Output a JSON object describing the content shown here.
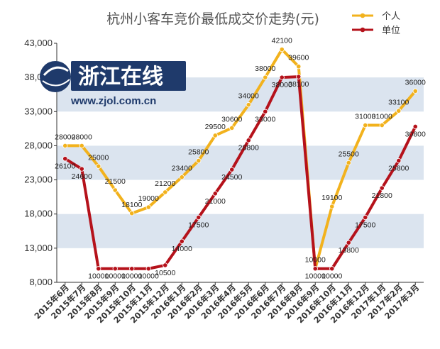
{
  "chart_data": {
    "type": "line",
    "title": "杭州小客车竞价最低成交价走势(元)",
    "categories": [
      "2015年6月",
      "2015年7月",
      "2015年8月",
      "2015年9月",
      "2015年10月",
      "2015年11月",
      "2015年12月",
      "2016年1月",
      "2016年2月",
      "2016年3月",
      "2016年4月",
      "2016年5月",
      "2016年6月",
      "2016年7月",
      "2016年8月",
      "2016年9月",
      "2016年10月",
      "2016年11月",
      "2016年12月",
      "2017年1月",
      "2017年2月",
      "2017年3月"
    ],
    "series": [
      {
        "name": "个人",
        "color": "#f2b21d",
        "values": [
          28000,
          28000,
          25000,
          21500,
          18100,
          19000,
          21200,
          23400,
          25800,
          29500,
          30600,
          34000,
          38000,
          42100,
          39600,
          10000,
          19100,
          25500,
          31000,
          31000,
          33100,
          36000
        ]
      },
      {
        "name": "单位",
        "color": "#b5121b",
        "values": [
          26100,
          24600,
          10000,
          10000,
          10000,
          10000,
          10500,
          14000,
          17500,
          21000,
          24500,
          28800,
          33000,
          38000,
          38100,
          10000,
          10000,
          13800,
          17500,
          21800,
          25800,
          30800
        ]
      }
    ],
    "data_labels": {
      "个人": [
        "28000",
        "28000",
        "25000",
        "21500",
        "18100",
        "19000",
        "21200",
        "23400",
        "25800",
        "29500",
        "30600",
        "34000",
        "38000",
        "42100",
        "39600",
        "10000",
        "19100",
        "25500",
        "31000",
        "31000",
        "33100",
        "36000"
      ],
      "单位": [
        "26100",
        "24600",
        "10000",
        "10000",
        "10000",
        "10000",
        "10500",
        "14000",
        "17500",
        "21000",
        "24500",
        "28800",
        "33000",
        "38000",
        "38100",
        "10000",
        "10000",
        "13800",
        "17500",
        "21800",
        "25800",
        "30800"
      ]
    },
    "yticks": [
      "8,000",
      "13,000",
      "18,000",
      "23,000",
      "28,000",
      "33,000",
      "38,000",
      "43,000"
    ],
    "ylim": [
      8000,
      43000
    ],
    "ytick_values": [
      8000,
      13000,
      18000,
      23000,
      28000,
      33000,
      38000,
      43000
    ],
    "legend_position": "top-right",
    "band_color": "#dbe4ef"
  },
  "watermark": {
    "name": "浙江在线",
    "url": "www.zjol.com.cn",
    "color": "#1f3a6b"
  }
}
